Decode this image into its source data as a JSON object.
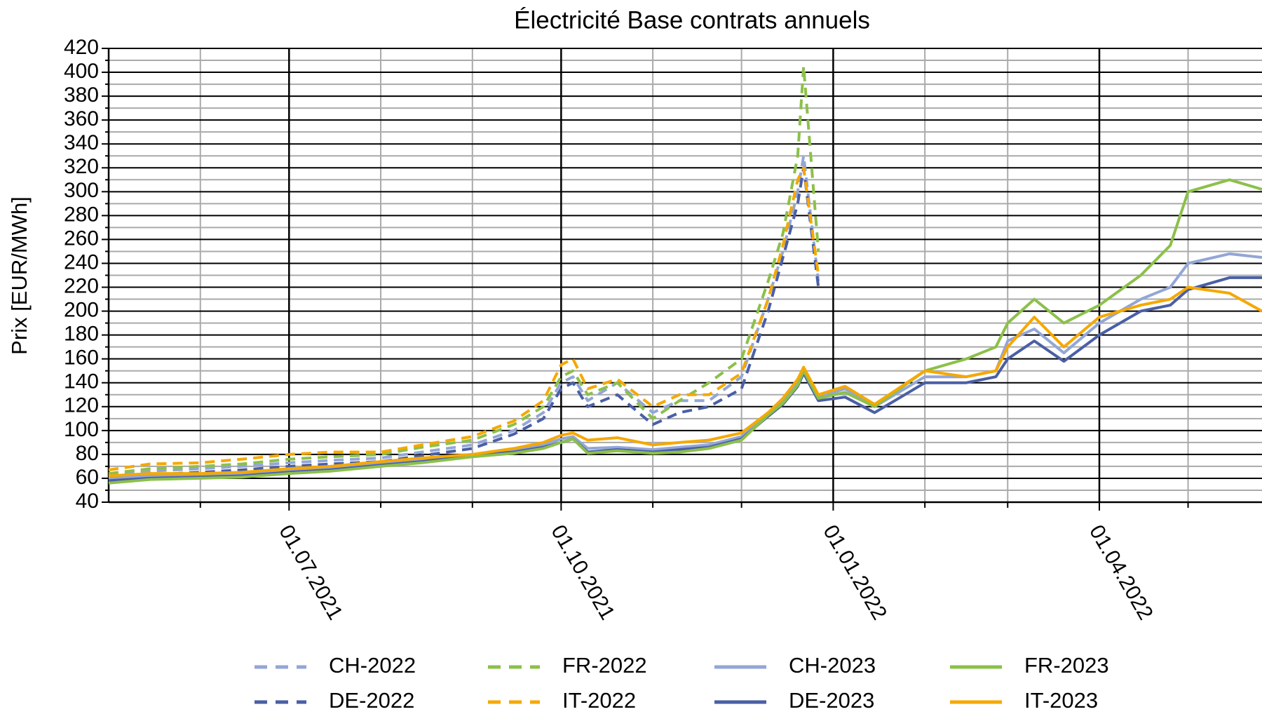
{
  "chart_data": {
    "type": "line",
    "title": "Électricité Base contrats annuels",
    "y_label": "Prix [EUR/MWh]",
    "x": [
      "01.05.2021",
      "15.05.2021",
      "01.06.2021",
      "15.06.2021",
      "01.07.2021",
      "15.07.2021",
      "01.08.2021",
      "15.08.2021",
      "01.09.2021",
      "15.09.2021",
      "25.09.2021",
      "01.10.2021",
      "05.10.2021",
      "10.10.2021",
      "20.10.2021",
      "01.11.2021",
      "10.11.2021",
      "20.11.2021",
      "01.12.2021",
      "10.12.2021",
      "15.12.2021",
      "20.12.2021",
      "22.12.2021",
      "27.12.2021",
      "05.01.2022",
      "15.01.2022",
      "01.02.2022",
      "15.02.2022",
      "25.02.2022",
      "01.03.2022",
      "10.03.2022",
      "20.03.2022",
      "01.04.2022",
      "15.04.2022",
      "25.04.2022",
      "01.05.2022",
      "15.05.2022",
      "26.05.2022"
    ],
    "xlim": [
      "01.05.2021",
      "26.05.2022"
    ],
    "xticks": [
      "01.07.2021",
      "01.10.2021",
      "01.01.2022",
      "01.04.2022"
    ],
    "xminorticks": [
      "01.06.2021",
      "01.08.2021",
      "01.09.2021",
      "01.11.2021",
      "01.12.2021",
      "01.02.2022",
      "01.03.2022",
      "01.05.2022"
    ],
    "ylim": [
      40,
      420
    ],
    "yticks": [
      40,
      60,
      80,
      100,
      120,
      140,
      160,
      180,
      200,
      220,
      240,
      260,
      280,
      300,
      320,
      340,
      360,
      380,
      400,
      420
    ],
    "yminorticks": [
      50,
      70,
      90,
      110,
      130,
      150,
      170,
      190,
      210,
      230,
      250,
      270,
      290,
      310,
      330,
      350,
      370,
      390,
      410
    ],
    "grid": true,
    "legend": "bottom",
    "series": [
      {
        "name": "CH-2022",
        "color": "#93a6d6",
        "style": "dashed",
        "values": [
          62,
          66,
          68,
          70,
          73,
          75,
          77,
          82,
          88,
          100,
          115,
          140,
          145,
          125,
          140,
          115,
          125,
          125,
          145,
          210,
          250,
          300,
          330,
          225,
          null,
          null,
          null,
          null,
          null,
          null,
          null,
          null,
          null,
          null,
          null,
          null,
          null,
          null
        ]
      },
      {
        "name": "DE-2022",
        "color": "#4a5fa6",
        "style": "dashed",
        "values": [
          60,
          63,
          65,
          67,
          70,
          72,
          74,
          79,
          85,
          97,
          110,
          135,
          140,
          120,
          130,
          105,
          115,
          120,
          135,
          200,
          245,
          290,
          320,
          220,
          null,
          null,
          null,
          null,
          null,
          null,
          null,
          null,
          null,
          null,
          null,
          null,
          null,
          null
        ]
      },
      {
        "name": "FR-2022",
        "color": "#8cc04a",
        "style": "dashed",
        "values": [
          64,
          68,
          70,
          72,
          76,
          78,
          80,
          86,
          92,
          105,
          120,
          145,
          150,
          130,
          140,
          110,
          125,
          140,
          160,
          225,
          265,
          330,
          405,
          250,
          null,
          null,
          null,
          null,
          null,
          null,
          null,
          null,
          null,
          null,
          null,
          null,
          null,
          null
        ]
      },
      {
        "name": "IT-2022",
        "color": "#f5a800",
        "style": "dashed",
        "values": [
          67,
          72,
          73,
          76,
          80,
          82,
          82,
          88,
          95,
          108,
          125,
          155,
          160,
          135,
          143,
          120,
          130,
          130,
          148,
          210,
          255,
          310,
          320,
          230,
          null,
          null,
          null,
          null,
          null,
          null,
          null,
          null,
          null,
          null,
          null,
          null,
          null,
          null
        ]
      },
      {
        "name": "CH-2023",
        "color": "#93a6d6",
        "style": "solid",
        "values": [
          60,
          62,
          62,
          63,
          66,
          68,
          72,
          75,
          80,
          83,
          88,
          93,
          95,
          85,
          86,
          84,
          86,
          88,
          95,
          115,
          125,
          140,
          150,
          128,
          135,
          120,
          145,
          145,
          150,
          175,
          185,
          165,
          190,
          210,
          220,
          240,
          248,
          245
        ]
      },
      {
        "name": "DE-2023",
        "color": "#4a5fa6",
        "style": "solid",
        "values": [
          58,
          60,
          61,
          62,
          65,
          67,
          71,
          74,
          79,
          82,
          86,
          90,
          93,
          82,
          84,
          82,
          84,
          86,
          93,
          112,
          122,
          137,
          148,
          125,
          128,
          115,
          140,
          140,
          145,
          160,
          175,
          158,
          180,
          200,
          205,
          218,
          228,
          228
        ]
      },
      {
        "name": "FR-2023",
        "color": "#8cc04a",
        "style": "solid",
        "values": [
          56,
          59,
          60,
          61,
          64,
          66,
          70,
          73,
          78,
          81,
          85,
          90,
          93,
          81,
          83,
          81,
          82,
          85,
          92,
          113,
          123,
          138,
          150,
          127,
          132,
          120,
          150,
          160,
          170,
          190,
          210,
          190,
          205,
          230,
          255,
          300,
          310,
          302
        ]
      },
      {
        "name": "IT-2023",
        "color": "#f5a800",
        "style": "solid",
        "values": [
          62,
          64,
          64,
          65,
          68,
          70,
          74,
          77,
          80,
          85,
          90,
          96,
          98,
          92,
          94,
          88,
          90,
          92,
          98,
          115,
          127,
          143,
          153,
          130,
          137,
          122,
          150,
          145,
          150,
          170,
          195,
          170,
          195,
          205,
          210,
          220,
          215,
          200
        ]
      }
    ]
  }
}
